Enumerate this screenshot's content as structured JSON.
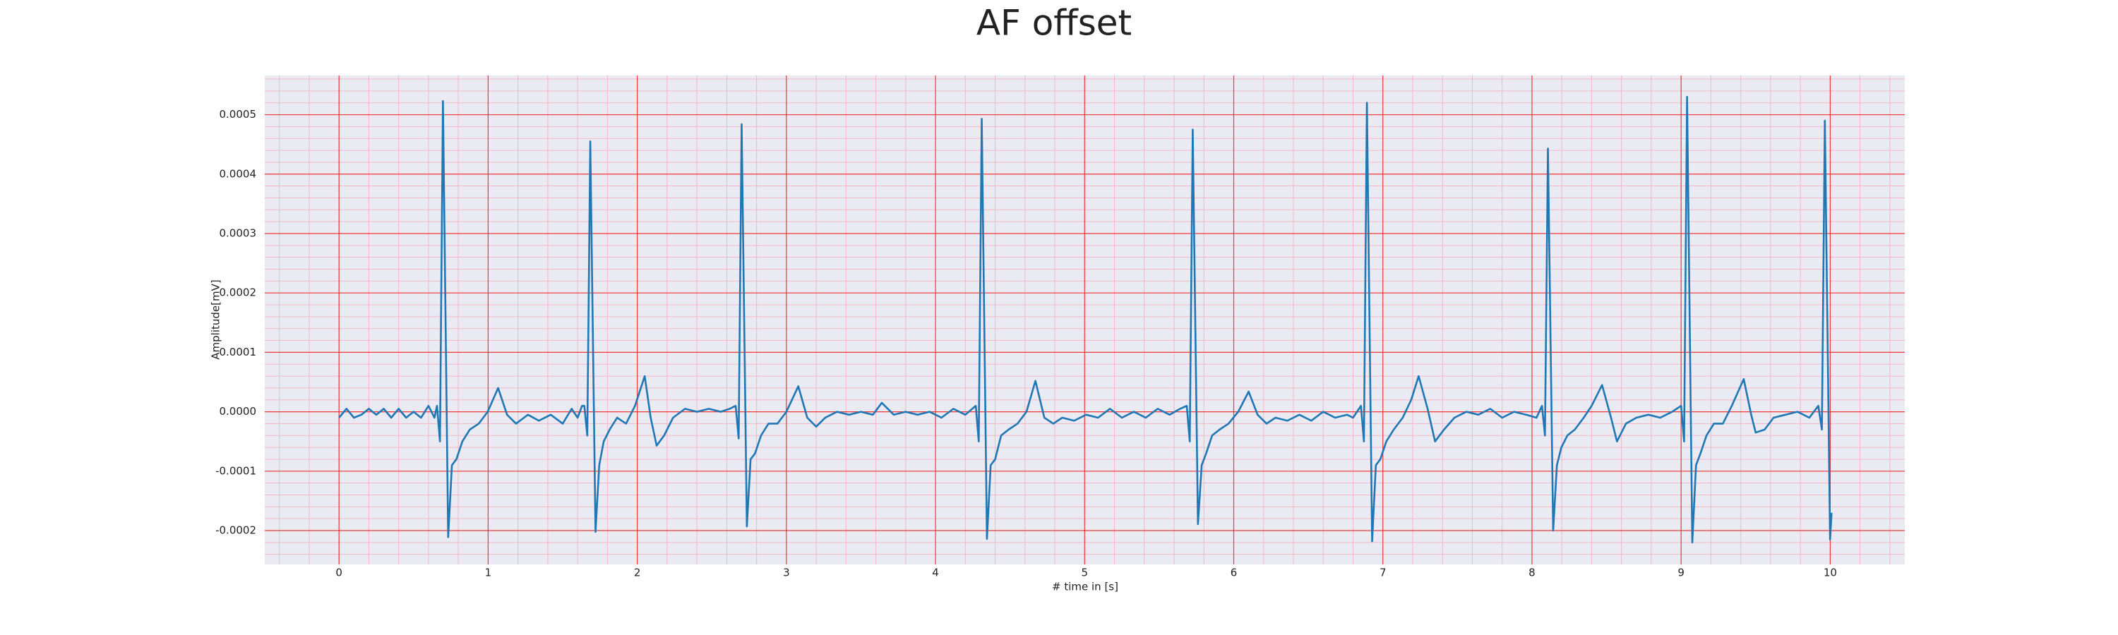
{
  "chart_data": {
    "type": "line",
    "title": "AF offset",
    "x_label": "# time in [s]",
    "y_label": "Amplitude[mV]",
    "color": "#1f77b4",
    "grid": true,
    "minor_grid": true,
    "xlim": [
      -0.498,
      10.5
    ],
    "ylim": [
      -0.000257,
      0.000566
    ],
    "xticks": [
      0,
      1,
      2,
      3,
      4,
      5,
      6,
      7,
      8,
      9,
      10
    ],
    "yticks": [
      -0.0002,
      -0.0001,
      {
        "value": 0,
        "label": "0.0000"
      },
      0.0001,
      0.0002,
      0.0003,
      0.0004,
      0.0005
    ],
    "x": [
      0,
      0.05,
      0.1,
      0.15,
      0.2,
      0.25,
      0.3,
      0.35,
      0.4,
      0.45,
      0.5,
      0.55,
      0.6,
      0.64,
      0.657,
      0.677,
      0.697,
      0.732,
      0.757,
      0.787,
      0.827,
      0.877,
      0.937,
      0.997,
      1.067,
      1.127,
      1.187,
      1.267,
      1.34,
      1.42,
      1.5,
      1.56,
      1.6,
      1.63,
      1.645,
      1.665,
      1.685,
      1.72,
      1.745,
      1.775,
      1.815,
      1.865,
      1.925,
      1.985,
      2.05,
      2.09,
      2.13,
      2.18,
      2.24,
      2.32,
      2.4,
      2.48,
      2.56,
      2.62,
      2.66,
      2.68,
      2.7,
      2.735,
      2.76,
      2.79,
      2.83,
      2.88,
      2.94,
      3.0,
      3.08,
      3.14,
      3.2,
      3.26,
      3.34,
      3.42,
      3.5,
      3.58,
      3.64,
      3.72,
      3.8,
      3.88,
      3.96,
      4.04,
      4.12,
      4.2,
      4.27,
      4.29,
      4.31,
      4.345,
      4.37,
      4.4,
      4.44,
      4.49,
      4.55,
      4.61,
      4.67,
      4.73,
      4.79,
      4.85,
      4.93,
      5.01,
      5.09,
      5.17,
      5.25,
      5.33,
      5.41,
      5.49,
      5.57,
      5.64,
      5.685,
      5.705,
      5.725,
      5.76,
      5.785,
      5.815,
      5.855,
      5.905,
      5.965,
      6.03,
      6.1,
      6.16,
      6.22,
      6.28,
      6.36,
      6.44,
      6.52,
      6.6,
      6.68,
      6.76,
      6.8,
      6.853,
      6.873,
      6.893,
      6.928,
      6.953,
      6.983,
      7.023,
      7.073,
      7.133,
      7.19,
      7.24,
      7.3,
      7.35,
      7.41,
      7.48,
      7.56,
      7.64,
      7.72,
      7.8,
      7.88,
      7.96,
      8.03,
      8.067,
      8.087,
      8.107,
      8.142,
      8.167,
      8.197,
      8.237,
      8.287,
      8.347,
      8.4,
      8.47,
      8.53,
      8.57,
      8.63,
      8.7,
      8.78,
      8.86,
      8.94,
      9.0,
      9.02,
      9.04,
      9.075,
      9.1,
      9.13,
      9.17,
      9.22,
      9.28,
      9.34,
      9.42,
      9.47,
      9.5,
      9.56,
      9.62,
      9.7,
      9.78,
      9.86,
      9.92,
      9.944,
      9.964,
      9.999,
      10.009
    ],
    "values": [
      -1e-05,
      5e-06,
      -1e-05,
      -5e-06,
      5e-06,
      -5e-06,
      5e-06,
      -1e-05,
      5e-06,
      -1e-05,
      0,
      -1e-05,
      1e-05,
      -1e-05,
      1e-05,
      -5e-05,
      0.000523,
      -0.000211,
      -9e-05,
      -8e-05,
      -5e-05,
      -3e-05,
      -2e-05,
      0,
      4e-05,
      -5e-06,
      -2e-05,
      -5e-06,
      -1.5e-05,
      -5e-06,
      -2e-05,
      5e-06,
      -1e-05,
      1e-05,
      1e-05,
      -4e-05,
      0.000455,
      -0.000202,
      -9e-05,
      -5e-05,
      -3e-05,
      -1e-05,
      -2e-05,
      1e-05,
      6e-05,
      -1e-05,
      -5.7e-05,
      -4e-05,
      -1e-05,
      5e-06,
      0,
      5e-06,
      0,
      5e-06,
      1e-05,
      -4.5e-05,
      0.000484,
      -0.000193,
      -8e-05,
      -7e-05,
      -4e-05,
      -2e-05,
      -2e-05,
      0,
      4.3e-05,
      -1e-05,
      -2.5e-05,
      -1e-05,
      0,
      -5e-06,
      0,
      -5e-06,
      1.5e-05,
      -5e-06,
      0,
      -5e-06,
      0,
      -1e-05,
      5e-06,
      -5e-06,
      1e-05,
      -5e-05,
      0.000493,
      -0.000214,
      -9e-05,
      -8e-05,
      -4e-05,
      -3e-05,
      -2e-05,
      0,
      5.2e-05,
      -1e-05,
      -2e-05,
      -1e-05,
      -1.5e-05,
      -5e-06,
      -1e-05,
      5e-06,
      -1e-05,
      0,
      -1e-05,
      5e-06,
      -5e-06,
      5e-06,
      1e-05,
      -5e-05,
      0.000475,
      -0.000189,
      -9e-05,
      -7e-05,
      -4e-05,
      -3e-05,
      -2e-05,
      0,
      3.4e-05,
      -5e-06,
      -2e-05,
      -1e-05,
      -1.5e-05,
      -5e-06,
      -1.5e-05,
      0,
      -1e-05,
      -5e-06,
      -1e-05,
      1e-05,
      -5e-05,
      0.00052,
      -0.000218,
      -9e-05,
      -8e-05,
      -5e-05,
      -3e-05,
      -1e-05,
      2e-05,
      6e-05,
      5e-06,
      -5e-05,
      -3e-05,
      -1e-05,
      0,
      -5e-06,
      5e-06,
      -1e-05,
      0,
      -5e-06,
      -1e-05,
      1e-05,
      -4e-05,
      0.000443,
      -0.0002,
      -9e-05,
      -6e-05,
      -4e-05,
      -3e-05,
      -1e-05,
      1e-05,
      4.5e-05,
      -1e-05,
      -5e-05,
      -2e-05,
      -1e-05,
      -5e-06,
      -1e-05,
      0,
      1e-05,
      -5e-05,
      0.00053,
      -0.00022,
      -9e-05,
      -7e-05,
      -4e-05,
      -2e-05,
      -2e-05,
      1e-05,
      5.5e-05,
      -5e-06,
      -3.5e-05,
      -3e-05,
      -1e-05,
      -5e-06,
      0,
      -1e-05,
      1e-05,
      -3e-05,
      0.00049,
      -0.000215,
      -0.00017
    ]
  }
}
